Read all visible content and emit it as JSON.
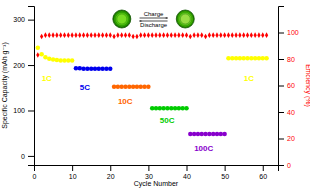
{
  "chart_data": {
    "type": "scatter",
    "xlabel": "Cycle Number",
    "ylabel": "Specific Capacity (mAh g⁻¹)",
    "y2label": "Efficiency (%)",
    "xlim": [
      0,
      64
    ],
    "ylim": [
      -20,
      330
    ],
    "y2lim": [
      0,
      120
    ],
    "xticks": [
      0,
      10,
      20,
      30,
      40,
      50,
      60
    ],
    "yticks": [
      0,
      100,
      200,
      300
    ],
    "y2ticks": [
      0,
      20,
      40,
      60,
      80,
      100
    ],
    "grid": false,
    "series": [
      {
        "color": "#ffff00",
        "marker": "circle",
        "x": [
          1,
          2,
          3,
          4,
          5,
          6,
          7,
          8,
          9,
          10
        ],
        "values": [
          238,
          224,
          217,
          214,
          212,
          211,
          210,
          210,
          210,
          210
        ]
      },
      {
        "color": "#0000ee",
        "marker": "circle",
        "x": [
          11,
          12,
          13,
          14,
          15,
          16,
          17,
          18,
          19,
          20
        ],
        "values": [
          193,
          193,
          192,
          192,
          192,
          192,
          192,
          192,
          192,
          192
        ]
      },
      {
        "color": "#ff6600",
        "marker": "circle",
        "x": [
          21,
          22,
          23,
          24,
          25,
          26,
          27,
          28,
          29,
          30
        ],
        "values": [
          152,
          152,
          152,
          152,
          152,
          152,
          152,
          152,
          152,
          152
        ]
      },
      {
        "color": "#00cc00",
        "marker": "circle",
        "x": [
          31,
          32,
          33,
          34,
          35,
          36,
          37,
          38,
          39,
          40
        ],
        "values": [
          105,
          105,
          105,
          105,
          105,
          105,
          105,
          105,
          105,
          105
        ]
      },
      {
        "color": "#8800cc",
        "marker": "circle",
        "x": [
          41,
          42,
          43,
          44,
          45,
          46,
          47,
          48,
          49,
          50
        ],
        "values": [
          48,
          48,
          48,
          48,
          48,
          48,
          48,
          48,
          48,
          48
        ]
      },
      {
        "color": "#ffff00",
        "marker": "circle",
        "x": [
          51,
          52,
          53,
          54,
          55,
          56,
          57,
          58,
          59,
          60,
          61
        ],
        "values": [
          215,
          215,
          215,
          215,
          215,
          215,
          215,
          215,
          215,
          215,
          215
        ]
      },
      {
        "color": "#ff0000",
        "marker": "diamond",
        "axis": "y2",
        "x": [
          1,
          2,
          3,
          4,
          5,
          6,
          7,
          8,
          9,
          10,
          11,
          12,
          13,
          14,
          15,
          16,
          17,
          18,
          19,
          20,
          21,
          22,
          23,
          24,
          25,
          26,
          27,
          28,
          29,
          30,
          31,
          32,
          33,
          34,
          35,
          36,
          37,
          38,
          39,
          40,
          41,
          42,
          43,
          44,
          45,
          46,
          47,
          48,
          49,
          50,
          51,
          52,
          53,
          54,
          55,
          56,
          57,
          58,
          59,
          60,
          61
        ],
        "values": [
          83,
          97,
          98,
          98,
          98,
          98,
          98,
          98,
          98,
          98,
          98,
          98,
          98,
          98,
          98,
          98,
          98,
          98,
          98,
          98,
          97,
          98,
          98,
          98,
          98,
          97,
          97,
          98,
          98,
          98,
          98,
          98,
          98,
          98,
          98,
          98,
          98,
          98,
          98,
          98,
          97,
          98,
          98,
          98,
          97,
          98,
          98,
          98,
          98,
          98,
          98,
          98,
          98,
          98,
          98,
          98,
          98,
          98,
          98,
          98,
          98
        ]
      }
    ],
    "annotations": [
      {
        "text": "1C",
        "x": 2,
        "y": 165,
        "color": "#ffff00"
      },
      {
        "text": "5C",
        "x": 12,
        "y": 145,
        "color": "#0000ee"
      },
      {
        "text": "10C",
        "x": 22,
        "y": 115,
        "color": "#ff6600"
      },
      {
        "text": "50C",
        "x": 33,
        "y": 72,
        "color": "#00cc00"
      },
      {
        "text": "100C",
        "x": 42,
        "y": 10,
        "color": "#8800cc"
      },
      {
        "text": "1C",
        "x": 55,
        "y": 165,
        "color": "#ffff00"
      },
      {
        "text": "Charge"
      },
      {
        "text": "Discharge"
      }
    ]
  }
}
